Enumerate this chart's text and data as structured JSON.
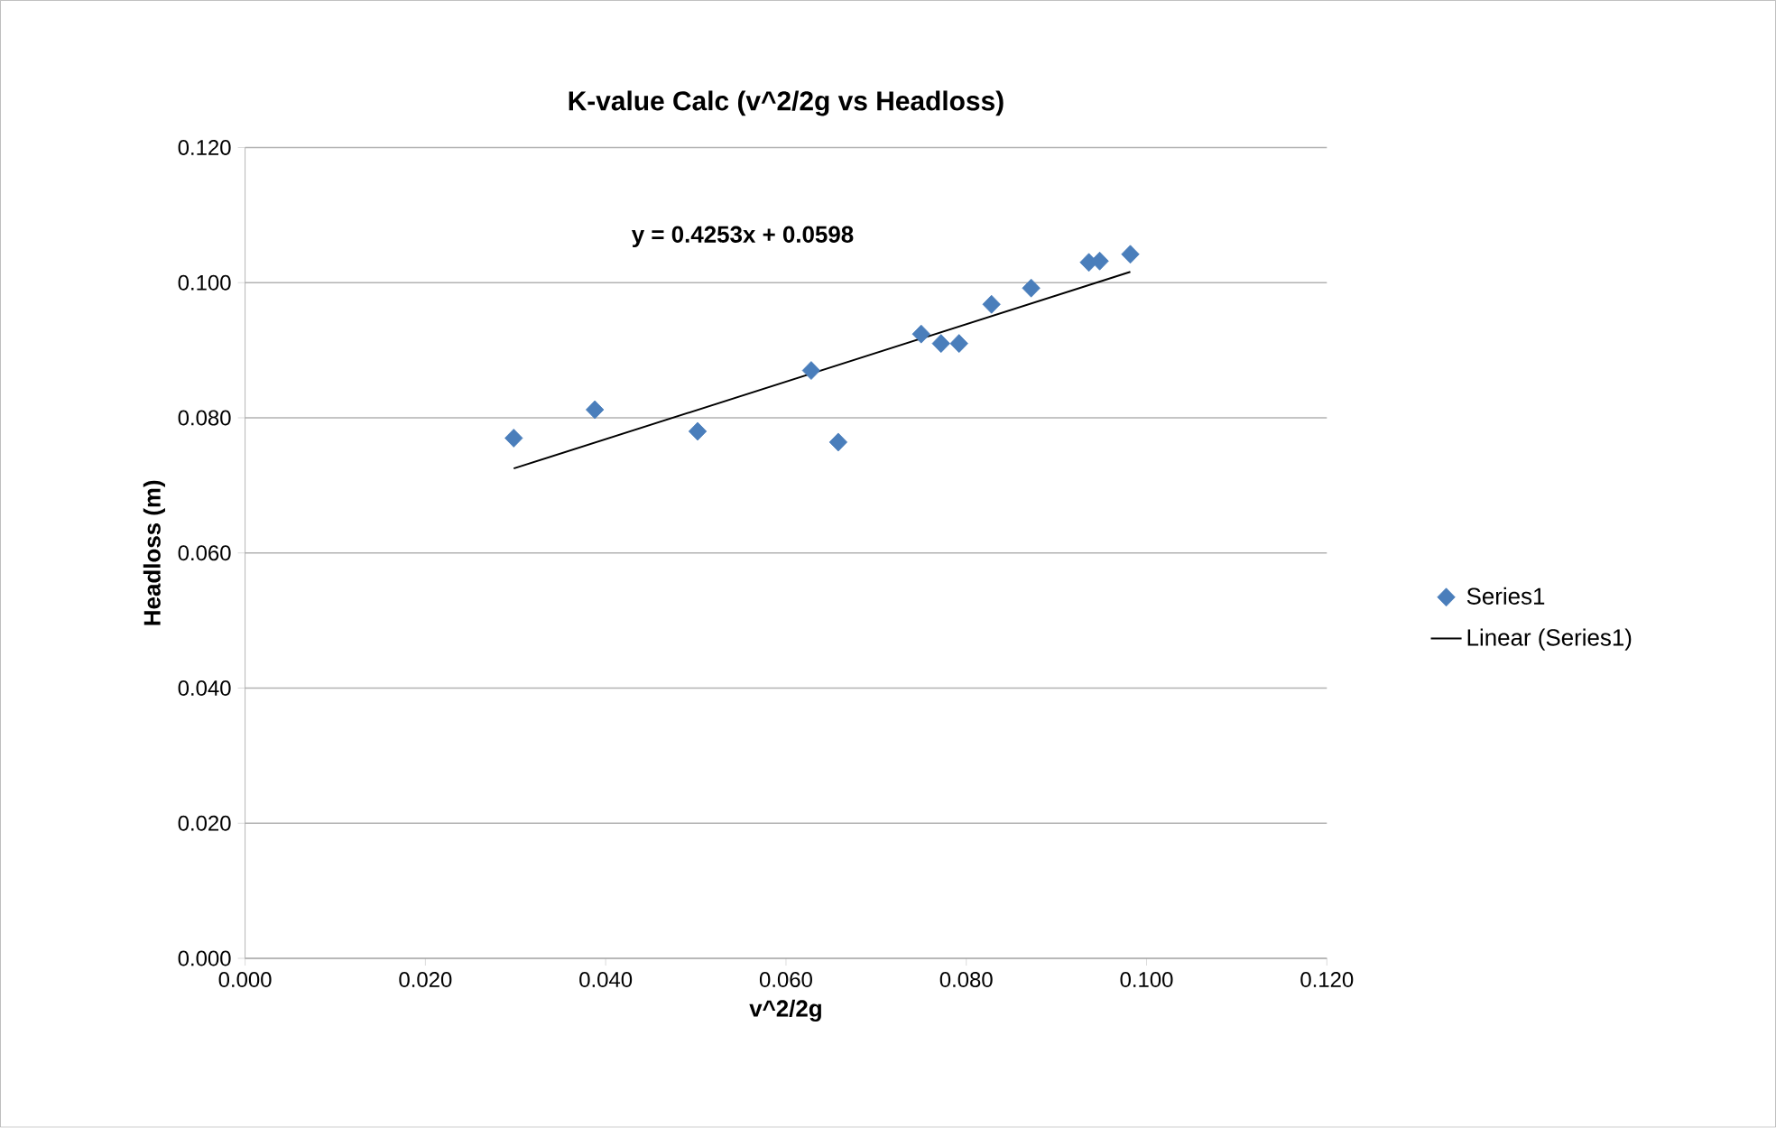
{
  "chart_data": {
    "type": "scatter",
    "title": "K-value Calc (v^2/2g vs Headloss)",
    "xlabel": "v^2/2g",
    "ylabel": "Headloss (m)",
    "series": [
      {
        "name": "Series1",
        "marker": "diamond",
        "color": "#4a7ebb",
        "x": [
          0.0298,
          0.0388,
          0.0502,
          0.0628,
          0.0658,
          0.075,
          0.0772,
          0.0792,
          0.0828,
          0.0872,
          0.0936,
          0.0948,
          0.0982
        ],
        "values": [
          0.077,
          0.0812,
          0.078,
          0.087,
          0.0764,
          0.0924,
          0.091,
          0.091,
          0.0968,
          0.0992,
          0.103,
          0.1032,
          0.1042
        ]
      },
      {
        "name": "Linear (Series1)",
        "type": "line",
        "marker": "none",
        "color": "#000000",
        "x": [
          0.0298,
          0.0982
        ],
        "values": [
          0.0725,
          0.1016
        ]
      }
    ],
    "annotations": [
      "y = 0.4253x + 0.0598"
    ],
    "xlim": [
      0,
      0.12
    ],
    "ylim": [
      0,
      0.12
    ],
    "xticks": [
      {
        "value": 0,
        "label": "0.000"
      },
      {
        "value": 0.02,
        "label": "0.020"
      },
      {
        "value": 0.04,
        "label": "0.040"
      },
      {
        "value": 0.06,
        "label": "0.060"
      },
      {
        "value": 0.08,
        "label": "0.080"
      },
      {
        "value": 0.1,
        "label": "0.100"
      },
      {
        "value": 0.12,
        "label": "0.120"
      }
    ],
    "yticks": [
      {
        "value": 0,
        "label": "0.000"
      },
      {
        "value": 0.02,
        "label": "0.020"
      },
      {
        "value": 0.04,
        "label": "0.040"
      },
      {
        "value": 0.06,
        "label": "0.060"
      },
      {
        "value": 0.08,
        "label": "0.080"
      },
      {
        "value": 0.1,
        "label": "0.100"
      },
      {
        "value": 0.12,
        "label": "0.120"
      }
    ],
    "grid": "y",
    "legend": "right"
  }
}
